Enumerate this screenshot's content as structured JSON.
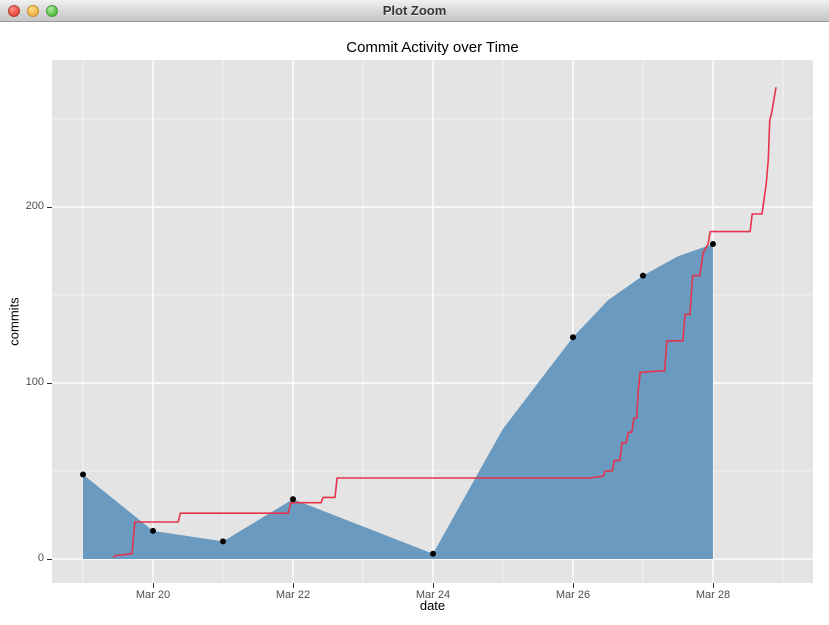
{
  "window": {
    "title": "Plot Zoom",
    "buttons": {
      "close": "close-window",
      "minimize": "minimize-window",
      "zoom": "zoom-window"
    }
  },
  "chart": {
    "title": "Commit Activity over Time",
    "xlabel": "date",
    "ylabel": "commits"
  },
  "colors": {
    "panel_background": "#e4e4e4",
    "grid_major": "#ffffff",
    "grid_minor": "#ffffff",
    "area_fill": "#6a9ac0",
    "step_line": "#e53349",
    "point": "#000000",
    "tick_mark": "#333333",
    "tick_label": "#4d4d4d",
    "outer_background": "#ffffff"
  },
  "chart_data": {
    "type": "area",
    "title": "Commit Activity over Time",
    "xlabel": "date",
    "ylabel": "commits",
    "legend": "none",
    "grid": "on",
    "x_unit": "day of March",
    "xlim": [
      18.557,
      29.429
    ],
    "ylim": [
      -13.64,
      283.52
    ],
    "x_ticks": [
      {
        "x": 20,
        "label": "Mar 20"
      },
      {
        "x": 22,
        "label": "Mar 22"
      },
      {
        "x": 24,
        "label": "Mar 24"
      },
      {
        "x": 26,
        "label": "Mar 26"
      },
      {
        "x": 28,
        "label": "Mar 28"
      }
    ],
    "y_ticks": [
      {
        "y": 0,
        "label": "0"
      },
      {
        "y": 100,
        "label": "100"
      },
      {
        "y": 200,
        "label": "200"
      }
    ],
    "x_minor": [
      19,
      21,
      23,
      25,
      27,
      29
    ],
    "y_minor": [
      50,
      150,
      250
    ],
    "series": [
      {
        "name": "daily-commits-area",
        "type": "area",
        "baseline": 0,
        "points": [
          [
            19,
            48
          ],
          [
            20,
            16
          ],
          [
            21,
            10
          ],
          [
            22,
            34
          ],
          [
            24,
            3
          ],
          [
            25,
            74
          ],
          [
            26,
            126
          ],
          [
            26.5,
            147
          ],
          [
            27,
            161
          ],
          [
            27.5,
            172
          ],
          [
            28,
            179
          ]
        ]
      },
      {
        "name": "daily-commits-points",
        "type": "scatter",
        "points": [
          [
            19,
            48
          ],
          [
            20,
            16
          ],
          [
            21,
            10
          ],
          [
            22,
            34
          ],
          [
            24,
            3
          ],
          [
            26,
            126
          ],
          [
            27,
            161
          ],
          [
            28,
            179
          ]
        ]
      },
      {
        "name": "cumulative-commits-step-line",
        "type": "line",
        "points": [
          [
            19.43,
            1
          ],
          [
            19.47,
            2
          ],
          [
            19.7,
            3
          ],
          [
            19.74,
            21
          ],
          [
            20.36,
            21
          ],
          [
            20.39,
            26
          ],
          [
            21.93,
            26
          ],
          [
            21.97,
            32
          ],
          [
            22.4,
            32
          ],
          [
            22.43,
            35
          ],
          [
            22.6,
            35
          ],
          [
            22.63,
            46
          ],
          [
            26.24,
            46
          ],
          [
            26.43,
            47
          ],
          [
            26.46,
            50
          ],
          [
            26.56,
            50
          ],
          [
            26.59,
            56
          ],
          [
            26.67,
            56
          ],
          [
            26.7,
            66
          ],
          [
            26.76,
            66
          ],
          [
            26.79,
            72
          ],
          [
            26.84,
            72
          ],
          [
            26.87,
            80
          ],
          [
            26.91,
            80
          ],
          [
            26.93,
            95
          ],
          [
            26.96,
            106
          ],
          [
            27.31,
            107
          ],
          [
            27.34,
            124
          ],
          [
            27.57,
            124
          ],
          [
            27.6,
            139
          ],
          [
            27.67,
            139
          ],
          [
            27.71,
            161
          ],
          [
            27.81,
            161
          ],
          [
            27.86,
            174
          ],
          [
            27.93,
            179
          ],
          [
            27.96,
            186
          ],
          [
            28.53,
            186
          ],
          [
            28.56,
            196
          ],
          [
            28.7,
            196
          ],
          [
            28.76,
            213
          ],
          [
            28.79,
            227
          ],
          [
            28.81,
            249
          ],
          [
            28.84,
            254
          ],
          [
            28.87,
            261
          ],
          [
            28.9,
            268
          ]
        ]
      }
    ]
  }
}
